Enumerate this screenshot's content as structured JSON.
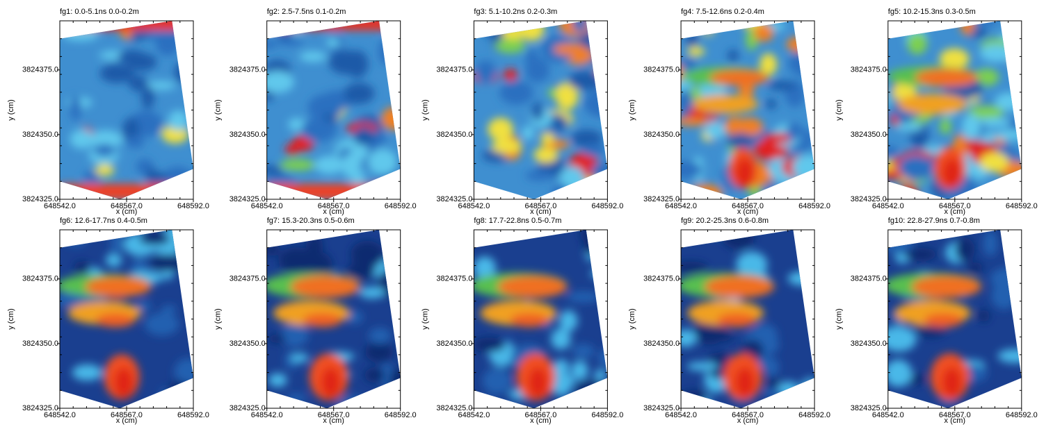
{
  "chart_data": [
    {
      "type": "image",
      "title": "fg1:  0.0-5.1ns  0.0-0.2m",
      "xlabel": "x (cm)",
      "ylabel": "y (cm)",
      "xlim": [
        648542,
        648592
      ],
      "ylim": [
        3824325,
        3824394
      ],
      "xticks": [
        {
          "value": 648542,
          "label": "648542.0"
        },
        {
          "value": 648567,
          "label": "648567.0"
        },
        {
          "value": 648592,
          "label": "648592.0"
        }
      ],
      "yticks": [
        {
          "value": 3824325,
          "label": "3824325.0"
        },
        {
          "value": 3824350,
          "label": "3824350.0"
        },
        {
          "value": 3824375,
          "label": "3824375.0"
        }
      ]
    },
    {
      "type": "image",
      "title": "fg2:  2.5-7.5ns  0.1-0.2m",
      "xlabel": "x (cm)",
      "ylabel": "y (cm)",
      "xlim": [
        648542,
        648592
      ],
      "ylim": [
        3824325,
        3824394
      ],
      "xticks": [
        {
          "value": 648542,
          "label": "648542.0"
        },
        {
          "value": 648567,
          "label": "648567.0"
        },
        {
          "value": 648592,
          "label": "648592.0"
        }
      ],
      "yticks": [
        {
          "value": 3824325,
          "label": "3824325.0"
        },
        {
          "value": 3824350,
          "label": "3824350.0"
        },
        {
          "value": 3824375,
          "label": "3824375.0"
        }
      ]
    },
    {
      "type": "image",
      "title": "fg3:  5.1-10.2ns  0.2-0.3m",
      "xlabel": "x (cm)",
      "ylabel": "y (cm)",
      "xlim": [
        648542,
        648592
      ],
      "ylim": [
        3824325,
        3824394
      ],
      "xticks": [
        {
          "value": 648542,
          "label": "648542.0"
        },
        {
          "value": 648567,
          "label": "648567.0"
        },
        {
          "value": 648592,
          "label": "648592.0"
        }
      ],
      "yticks": [
        {
          "value": 3824325,
          "label": "3824325.0"
        },
        {
          "value": 3824350,
          "label": "3824350.0"
        },
        {
          "value": 3824375,
          "label": "3824375.0"
        }
      ]
    },
    {
      "type": "image",
      "title": "fg4:  7.5-12.6ns  0.2-0.4m",
      "xlabel": "x (cm)",
      "ylabel": "y (cm)",
      "xlim": [
        648542,
        648592
      ],
      "ylim": [
        3824325,
        3824394
      ],
      "xticks": [
        {
          "value": 648542,
          "label": "648542.0"
        },
        {
          "value": 648567,
          "label": "648567.0"
        },
        {
          "value": 648592,
          "label": "648592.0"
        }
      ],
      "yticks": [
        {
          "value": 3824325,
          "label": "3824325.0"
        },
        {
          "value": 3824350,
          "label": "3824350.0"
        },
        {
          "value": 3824375,
          "label": "3824375.0"
        }
      ]
    },
    {
      "type": "image",
      "title": "fg5:  10.2-15.3ns  0.3-0.5m",
      "xlabel": "x (cm)",
      "ylabel": "y (cm)",
      "xlim": [
        648542,
        648592
      ],
      "ylim": [
        3824325,
        3824394
      ],
      "xticks": [
        {
          "value": 648542,
          "label": "648542.0"
        },
        {
          "value": 648567,
          "label": "648567.0"
        },
        {
          "value": 648592,
          "label": "648592.0"
        }
      ],
      "yticks": [
        {
          "value": 3824325,
          "label": "3824325.0"
        },
        {
          "value": 3824350,
          "label": "3824350.0"
        },
        {
          "value": 3824375,
          "label": "3824375.0"
        }
      ]
    },
    {
      "type": "image",
      "title": "fg6:  12.6-17.7ns  0.4-0.5m",
      "xlabel": "x (cm)",
      "ylabel": "y (cm)",
      "xlim": [
        648542,
        648592
      ],
      "ylim": [
        3824325,
        3824394
      ],
      "xticks": [
        {
          "value": 648542,
          "label": "648542.0"
        },
        {
          "value": 648567,
          "label": "648567.0"
        },
        {
          "value": 648592,
          "label": "648592.0"
        }
      ],
      "yticks": [
        {
          "value": 3824325,
          "label": "3824325.0"
        },
        {
          "value": 3824350,
          "label": "3824350.0"
        },
        {
          "value": 3824375,
          "label": "3824375.0"
        }
      ]
    },
    {
      "type": "image",
      "title": "fg7:  15.3-20.3ns  0.5-0.6m",
      "xlabel": "x (cm)",
      "ylabel": "y (cm)",
      "xlim": [
        648542,
        648592
      ],
      "ylim": [
        3824325,
        3824394
      ],
      "xticks": [
        {
          "value": 648542,
          "label": "648542.0"
        },
        {
          "value": 648567,
          "label": "648567.0"
        },
        {
          "value": 648592,
          "label": "648592.0"
        }
      ],
      "yticks": [
        {
          "value": 3824325,
          "label": "3824325.0"
        },
        {
          "value": 3824350,
          "label": "3824350.0"
        },
        {
          "value": 3824375,
          "label": "3824375.0"
        }
      ]
    },
    {
      "type": "image",
      "title": "fg8:  17.7-22.8ns  0.5-0.7m",
      "xlabel": "x (cm)",
      "ylabel": "y (cm)",
      "xlim": [
        648542,
        648592
      ],
      "ylim": [
        3824325,
        3824394
      ],
      "xticks": [
        {
          "value": 648542,
          "label": "648542.0"
        },
        {
          "value": 648567,
          "label": "648567.0"
        },
        {
          "value": 648592,
          "label": "648592.0"
        }
      ],
      "yticks": [
        {
          "value": 3824325,
          "label": "3824325.0"
        },
        {
          "value": 3824350,
          "label": "3824350.0"
        },
        {
          "value": 3824375,
          "label": "3824375.0"
        }
      ]
    },
    {
      "type": "image",
      "title": "fg9:  20.2-25.3ns  0.6-0.8m",
      "xlabel": "x (cm)",
      "ylabel": "y (cm)",
      "xlim": [
        648542,
        648592
      ],
      "ylim": [
        3824325,
        3824394
      ],
      "xticks": [
        {
          "value": 648542,
          "label": "648542.0"
        },
        {
          "value": 648567,
          "label": "648567.0"
        },
        {
          "value": 648592,
          "label": "648592.0"
        }
      ],
      "yticks": [
        {
          "value": 3824325,
          "label": "3824325.0"
        },
        {
          "value": 3824350,
          "label": "3824350.0"
        },
        {
          "value": 3824375,
          "label": "3824375.0"
        }
      ]
    },
    {
      "type": "image",
      "title": "fg10:  22.8-27.9ns  0.7-0.8m",
      "xlabel": "x (cm)",
      "ylabel": "y (cm)",
      "xlim": [
        648542,
        648592
      ],
      "ylim": [
        3824325,
        3824394
      ],
      "xticks": [
        {
          "value": 648542,
          "label": "648542.0"
        },
        {
          "value": 648567,
          "label": "648567.0"
        },
        {
          "value": 648592,
          "label": "648592.0"
        }
      ],
      "yticks": [
        {
          "value": 3824325,
          "label": "3824325.0"
        },
        {
          "value": 3824350,
          "label": "3824350.0"
        },
        {
          "value": 3824375,
          "label": "3824375.0"
        }
      ]
    }
  ]
}
